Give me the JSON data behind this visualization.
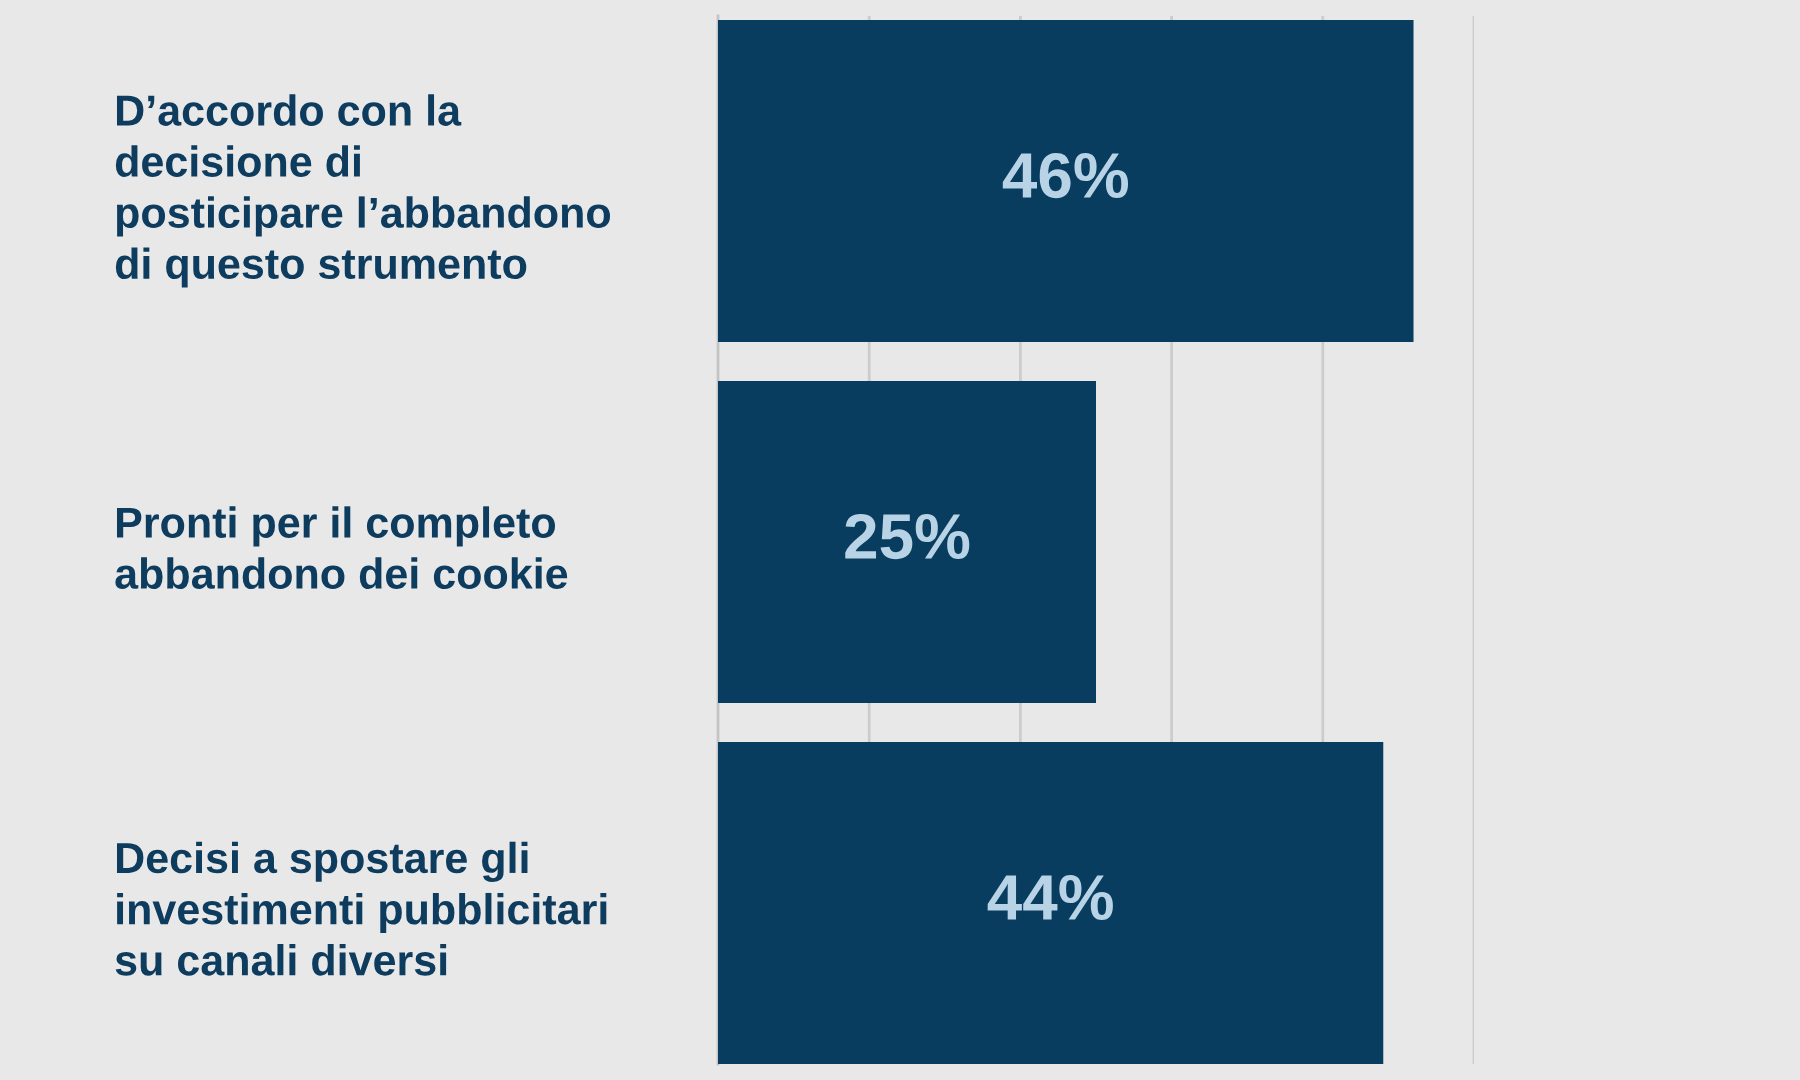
{
  "chart_data": {
    "type": "bar",
    "orientation": "horizontal",
    "categories": [
      "D’accordo con la\ndecisione di\nposticipare l’abbandono\ndi questo strumento",
      "Pronti per il completo\nabbandono dei cookie",
      "Decisi a spostare gli\ninvestimenti pubblicitari\nsu canali diversi"
    ],
    "values": [
      46,
      25,
      44
    ],
    "color": "#083d5f",
    "value_labels": [
      "46%",
      "25%",
      "44%"
    ],
    "xlim": [
      0,
      50
    ],
    "xticks": [
      {
        "value": 10,
        "label": null
      },
      {
        "value": 20,
        "label": null
      },
      {
        "value": 30,
        "label": null
      },
      {
        "value": 40,
        "label": null
      },
      {
        "value": 50,
        "label": null
      }
    ],
    "grid": "x",
    "tick_labels": "y"
  }
}
